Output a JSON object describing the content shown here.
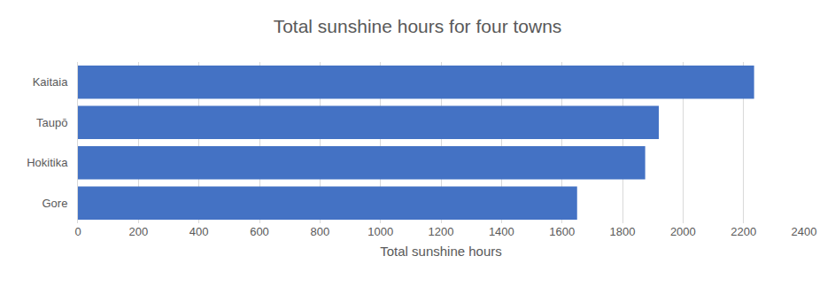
{
  "chart_data": {
    "type": "bar",
    "orientation": "horizontal",
    "title": "Total sunshine hours for four towns",
    "x_label": "Total sunshine hours",
    "categories": [
      "Kaitaia",
      "Taupō",
      "Hokitika",
      "Gore"
    ],
    "values": [
      2235,
      1920,
      1875,
      1650
    ],
    "color": "#4472c4",
    "xlim": [
      0,
      2400
    ],
    "xticks": [
      0,
      200,
      400,
      600,
      800,
      1000,
      1200,
      1400,
      1600,
      1800,
      2000,
      2200,
      2400
    ],
    "grid": true
  }
}
